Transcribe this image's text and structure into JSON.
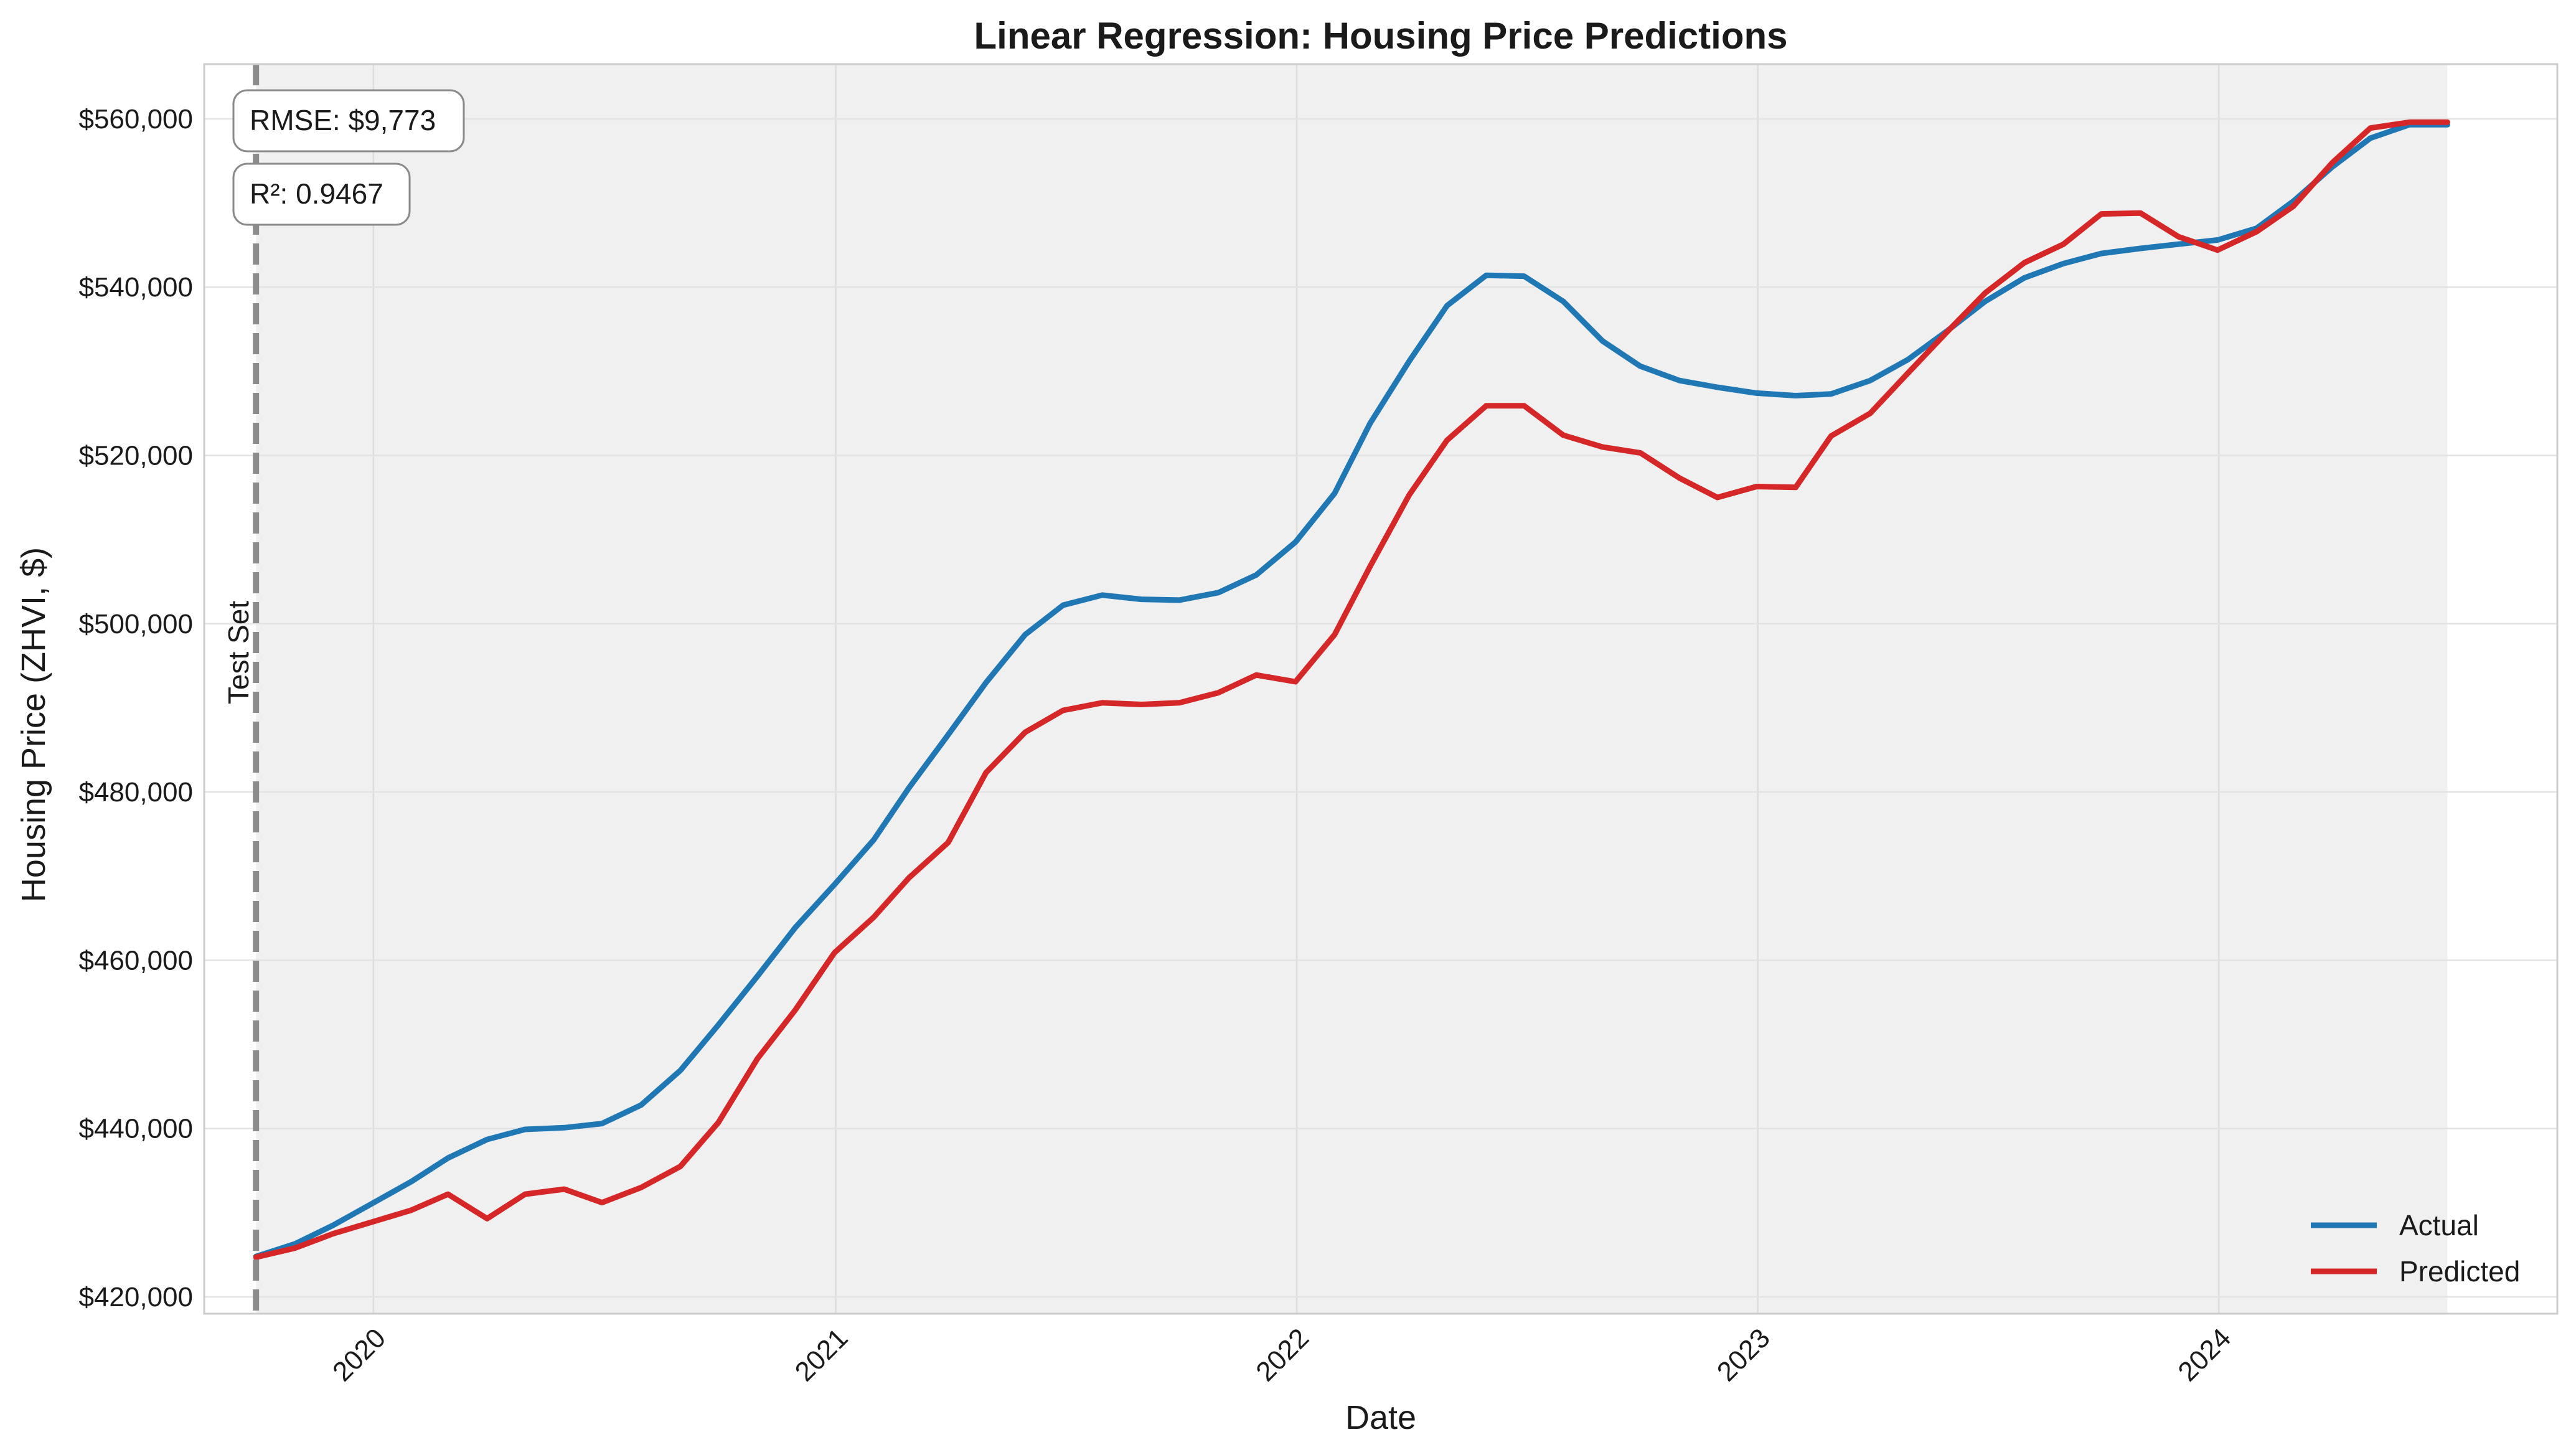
{
  "chart_data": {
    "type": "line",
    "title": "Linear Regression: Housing Price Predictions",
    "xlabel": "Date",
    "ylabel": "Housing Price (ZHVI, $)",
    "xlim": [
      "2019-08-20",
      "2024-09-25"
    ],
    "ylim": [
      418000,
      566500
    ],
    "x_ticks": [
      "2020",
      "2021",
      "2022",
      "2023",
      "2024"
    ],
    "y_ticks": [
      420000,
      440000,
      460000,
      480000,
      500000,
      520000,
      540000,
      560000
    ],
    "y_tick_labels": [
      "$420,000",
      "$440,000",
      "$460,000",
      "$480,000",
      "$500,000",
      "$520,000",
      "$540,000",
      "$560,000"
    ],
    "grid": true,
    "legend_position": "bottom-right",
    "test_set": {
      "start": "2019-09-30",
      "end": "2024-06-30",
      "label": "Test Set",
      "shade_color": "#f0f0f0",
      "line_color": "#8c8c8c"
    },
    "annotations": [
      {
        "text": "RMSE: $9,773",
        "position": "top-left"
      },
      {
        "text": "R²: 0.9467",
        "position": "top-left"
      }
    ],
    "x": [
      "2019-09-30",
      "2019-10-31",
      "2019-11-30",
      "2019-12-31",
      "2020-01-31",
      "2020-02-29",
      "2020-03-31",
      "2020-04-30",
      "2020-05-31",
      "2020-06-30",
      "2020-07-31",
      "2020-08-31",
      "2020-09-30",
      "2020-10-31",
      "2020-11-30",
      "2020-12-31",
      "2021-01-31",
      "2021-02-28",
      "2021-03-31",
      "2021-04-30",
      "2021-05-31",
      "2021-06-30",
      "2021-07-31",
      "2021-08-31",
      "2021-09-30",
      "2021-10-31",
      "2021-11-30",
      "2021-12-31",
      "2022-01-31",
      "2022-02-28",
      "2022-03-31",
      "2022-04-30",
      "2022-05-31",
      "2022-06-30",
      "2022-07-31",
      "2022-08-31",
      "2022-09-30",
      "2022-10-31",
      "2022-11-30",
      "2022-12-31",
      "2023-01-31",
      "2023-02-28",
      "2023-03-31",
      "2023-04-30",
      "2023-05-31",
      "2023-06-30",
      "2023-07-31",
      "2023-08-31",
      "2023-09-30",
      "2023-10-31",
      "2023-11-30",
      "2023-12-31",
      "2024-01-31",
      "2024-02-29",
      "2024-03-31",
      "2024-04-30",
      "2024-05-31",
      "2024-06-30"
    ],
    "series": [
      {
        "name": "Actual",
        "color": "#1f77b4",
        "values": [
          424800,
          426300,
          428500,
          431100,
          433700,
          436500,
          438700,
          439900,
          440100,
          440600,
          442800,
          446900,
          452300,
          458100,
          463900,
          469000,
          474300,
          480500,
          486800,
          493000,
          498700,
          502200,
          503400,
          502900,
          502800,
          503700,
          505800,
          509700,
          515500,
          523800,
          531200,
          537800,
          541400,
          541300,
          538300,
          533600,
          530600,
          528900,
          528100,
          527400,
          527100,
          527300,
          528900,
          531400,
          534800,
          538300,
          541100,
          542800,
          544000,
          544600,
          545100,
          545600,
          547000,
          550200,
          554300,
          557700,
          559300,
          559300
        ]
      },
      {
        "name": "Predicted",
        "color": "#d62728",
        "values": [
          424700,
          425800,
          427500,
          428900,
          430300,
          432200,
          429300,
          432200,
          432800,
          431200,
          433000,
          435500,
          440700,
          448300,
          454100,
          460900,
          465100,
          469800,
          474000,
          482300,
          487100,
          489700,
          490600,
          490400,
          490600,
          491800,
          493900,
          493100,
          498700,
          506800,
          515300,
          521800,
          525900,
          525900,
          522400,
          521000,
          520300,
          517300,
          515000,
          516300,
          516200,
          522300,
          525000,
          529800,
          534700,
          539300,
          542900,
          545100,
          548700,
          548800,
          546000,
          544400,
          546600,
          549600,
          554800,
          558900,
          559600,
          559600
        ]
      }
    ]
  }
}
